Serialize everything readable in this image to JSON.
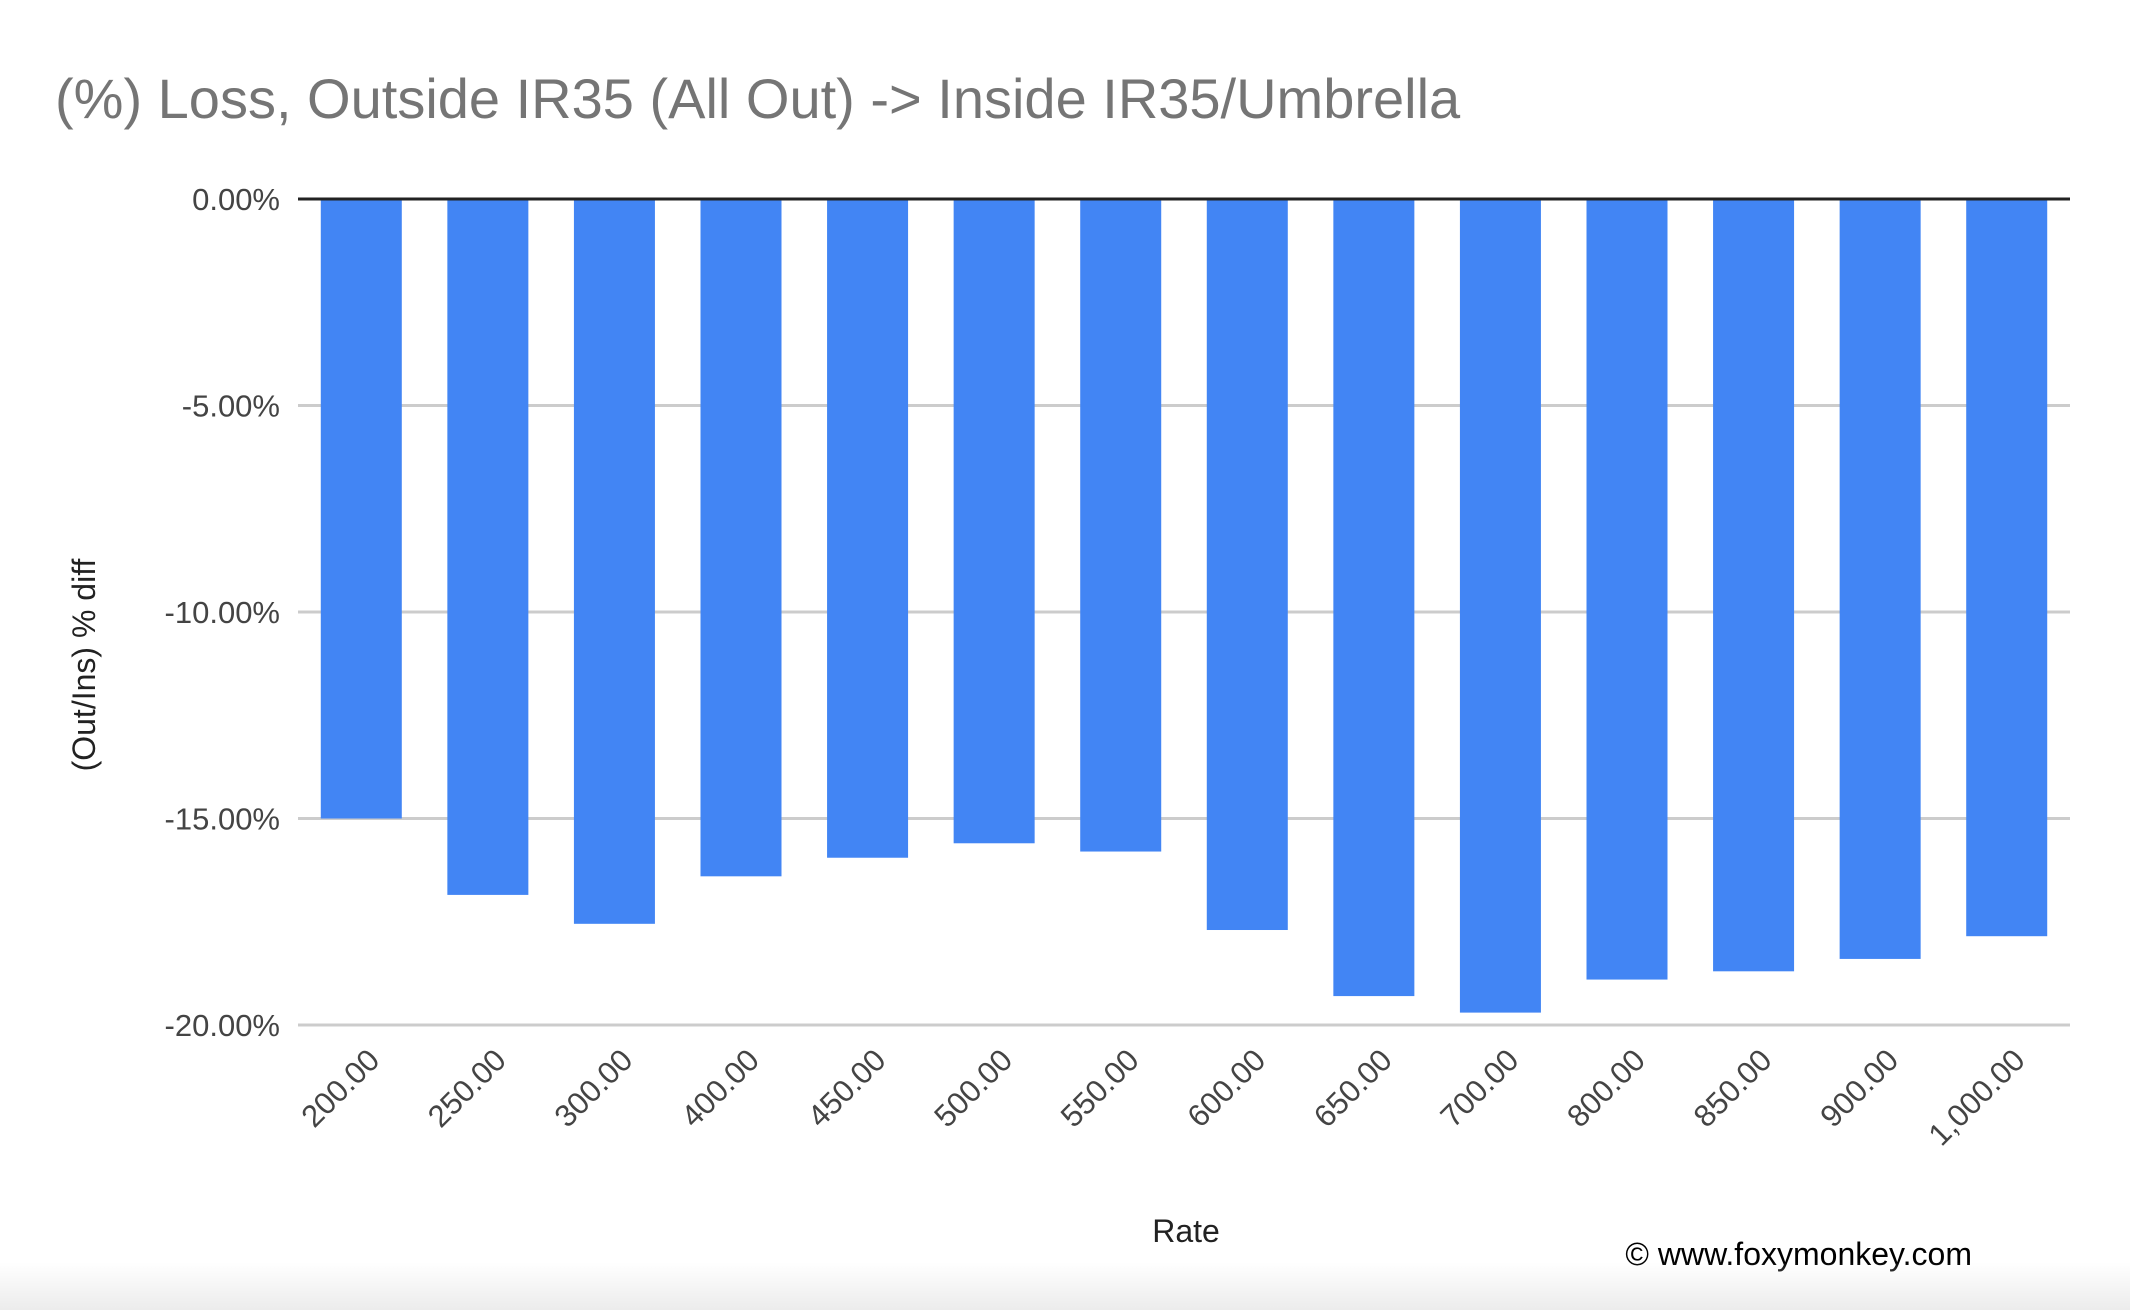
{
  "chart_data": {
    "type": "bar",
    "title": "(%) Loss, Outside IR35 (All Out)  ->  Inside IR35/Umbrella",
    "xlabel": "Rate",
    "ylabel": "(Out/Ins) % diff",
    "categories": [
      "200.00",
      "250.00",
      "300.00",
      "400.00",
      "450.00",
      "500.00",
      "550.00",
      "600.00",
      "650.00",
      "700.00",
      "800.00",
      "850.00",
      "900.00",
      "1,000.00"
    ],
    "values": [
      -15.0,
      -16.85,
      -17.55,
      -16.4,
      -15.95,
      -15.6,
      -15.8,
      -17.7,
      -19.3,
      -19.7,
      -18.9,
      -18.7,
      -18.4,
      -17.85
    ],
    "ylim": [
      -20,
      0
    ],
    "yticks": [
      0,
      -5,
      -10,
      -15,
      -20
    ],
    "ytick_labels": [
      "0.00%",
      "-5.00%",
      "-10.00%",
      "-15.00%",
      "-20.00%"
    ],
    "grid": true,
    "bar_color": "#4285f4",
    "watermark": "© www.foxymonkey.com"
  }
}
